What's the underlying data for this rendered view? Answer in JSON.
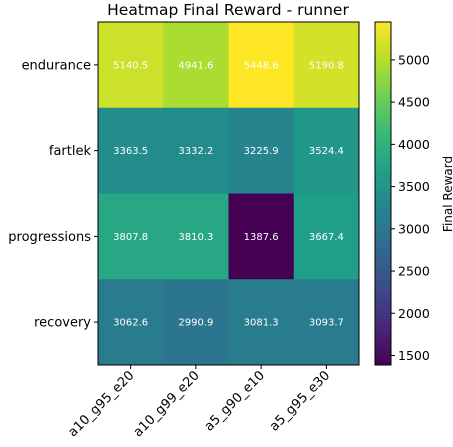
{
  "chart_data": {
    "type": "heatmap",
    "title": "Heatmap Final Reward - runner",
    "rows": [
      "endurance",
      "fartlek",
      "progressions",
      "recovery"
    ],
    "columns": [
      "a10_g95_e20",
      "a10_g99_e20",
      "a5_g90_e10",
      "a5_g95_e30"
    ],
    "values": [
      [
        5140.5,
        4941.6,
        5448.6,
        5190.8
      ],
      [
        3363.5,
        3332.2,
        3225.9,
        3524.4
      ],
      [
        3807.8,
        3810.3,
        1387.6,
        3667.4
      ],
      [
        3062.6,
        2990.9,
        3081.3,
        3093.7
      ]
    ],
    "colorbar": {
      "label": "Final Reward",
      "range": [
        1387.6,
        5448.6
      ],
      "ticks": [
        1500,
        2000,
        2500,
        3000,
        3500,
        4000,
        4500,
        5000
      ],
      "colormap": "viridis"
    },
    "value_label_color": "#ffffff",
    "grid": false
  }
}
